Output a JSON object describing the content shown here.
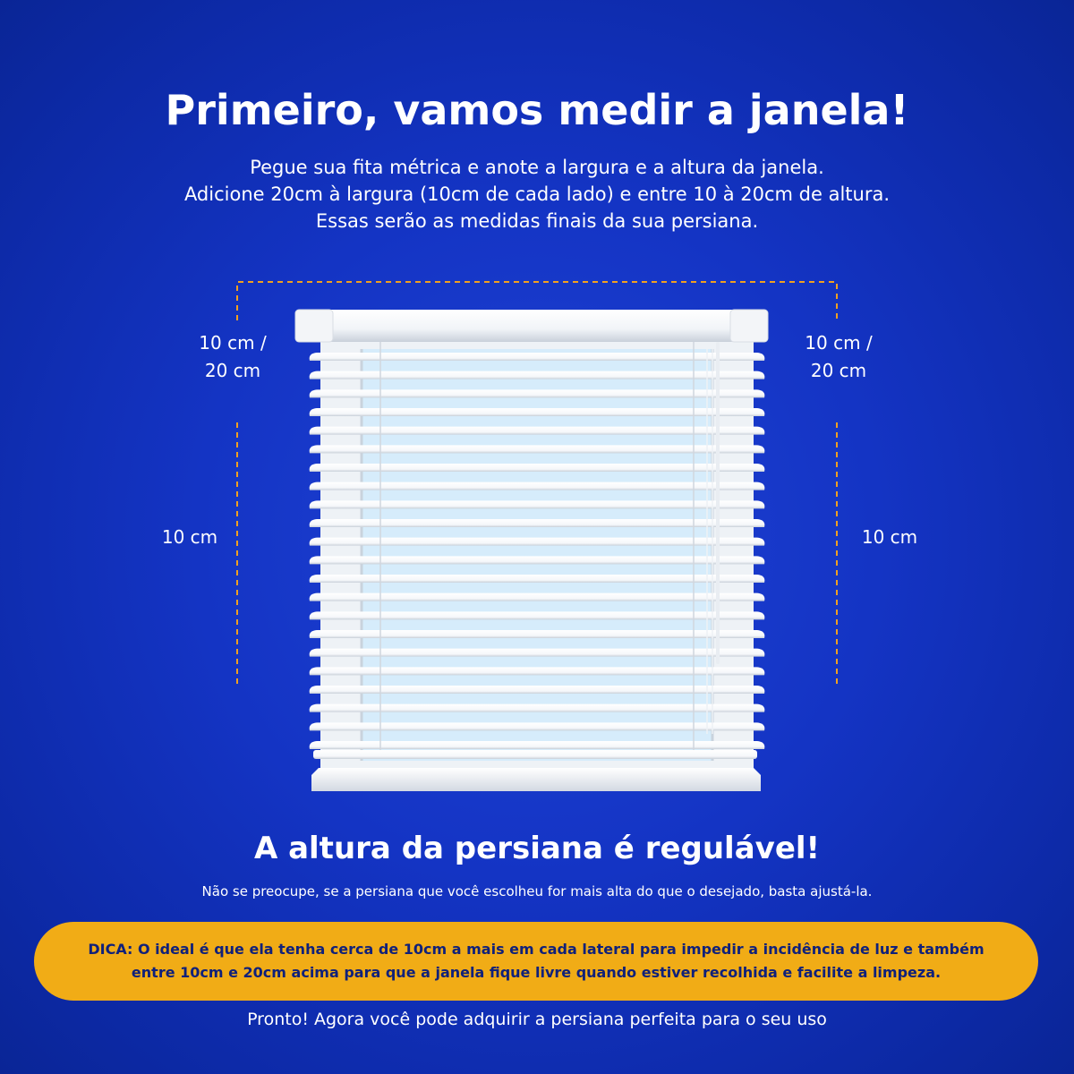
{
  "header": {
    "title": "Primeiro, vamos medir a janela!",
    "intro_lines": [
      "Pegue sua fita métrica e anote a largura e a altura da janela.",
      "Adicione 20cm à largura (10cm de cada lado) e entre 10 à 20cm de altura.",
      "Essas serão as medidas finais da sua persiana."
    ]
  },
  "diagram": {
    "left_top_label": [
      "10 cm /",
      "20 cm"
    ],
    "right_top_label": [
      "10 cm /",
      "20 cm"
    ],
    "left_side_label": "10 cm",
    "right_side_label": "10 cm",
    "slat_count": 22,
    "colors": {
      "guide_line": "#f1a020",
      "slat": "#ffffff",
      "glass": "#d6ecfb"
    }
  },
  "info": {
    "subtitle": "A altura da persiana é regulável!",
    "note": "Não se preocupe, se a persiana que você escolheu for mais alta do que o desejado, basta ajustá-la."
  },
  "tip": {
    "lines": [
      "DICA: O ideal é que ela tenha cerca de 10cm a mais em cada lateral para impedir a incidência de luz e também",
      "entre 10cm e 20cm acima para que a janela fique livre quando estiver recolhida e facilite a limpeza."
    ]
  },
  "footer": {
    "text": "Pronto! Agora você pode adquirir a persiana perfeita para o seu uso"
  },
  "theme": {
    "background": "#1434c4",
    "tip_background": "#f1ac16",
    "tip_text": "#10217a"
  }
}
